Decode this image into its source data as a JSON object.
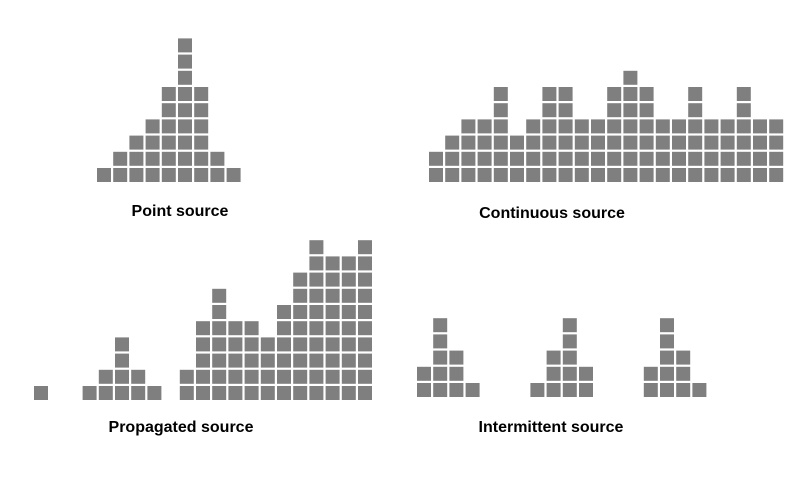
{
  "colors": {
    "cell": "#7f7f7f",
    "background": "#ffffff"
  },
  "chart_data": [
    {
      "type": "bar",
      "title": "Point source",
      "values": [
        1,
        2,
        3,
        4,
        6,
        9,
        6,
        2,
        1
      ]
    },
    {
      "type": "bar",
      "title": "Continuous source",
      "values": [
        2,
        3,
        4,
        4,
        6,
        3,
        4,
        6,
        6,
        4,
        4,
        6,
        7,
        6,
        4,
        4,
        6,
        4,
        4,
        6,
        4,
        4
      ]
    },
    {
      "type": "bar",
      "title": "Propagated source",
      "values": [
        1,
        0,
        0,
        1,
        2,
        4,
        2,
        1,
        0,
        2,
        5,
        7,
        5,
        5,
        4,
        6,
        8,
        10,
        9,
        9,
        10
      ]
    },
    {
      "type": "bar",
      "title": "Intermittent source",
      "values": [
        2,
        5,
        3,
        1,
        0,
        0,
        0,
        1,
        3,
        5,
        2,
        0,
        0,
        0,
        2,
        5,
        3,
        1
      ]
    }
  ]
}
